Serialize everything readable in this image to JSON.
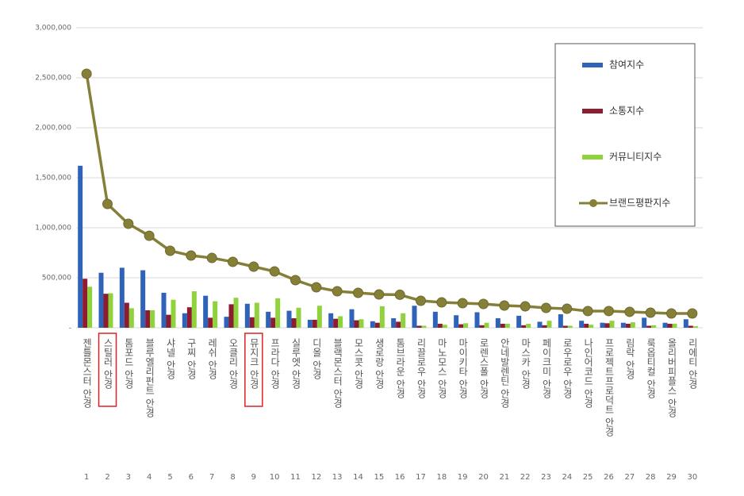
{
  "chart_data": {
    "type": "bar-line",
    "categories": [
      "젠틀몬스터 안경",
      "스틸러 안경",
      "톰포드 안경",
      "블루엘리펀트 안경",
      "샤넬 안경",
      "구찌 안경",
      "레쉬 안경",
      "오클리 안경",
      "뮤지크 안경",
      "프라다 안경",
      "실루엣 안경",
      "디올 안경",
      "블랙몬스터 안경",
      "모스콧 안경",
      "생로랑 안경",
      "톰브라운 안경",
      "리끌로우 안경",
      "마노모스 안경",
      "마이키타 안경",
      "로렌스폴 안경",
      "안네발렌틴 안경",
      "마스카 안경",
      "페이크미 안경",
      "로우로우 안경",
      "나인어코드 안경",
      "프로젝트프로덕트 안경",
      "림락 안경",
      "룩옵티컬 안경",
      "올리버피플스 안경",
      "리에티 안경"
    ],
    "ranks": [
      1,
      2,
      3,
      4,
      5,
      6,
      7,
      8,
      9,
      10,
      11,
      12,
      13,
      14,
      15,
      16,
      17,
      18,
      19,
      20,
      21,
      22,
      23,
      24,
      25,
      26,
      27,
      28,
      29,
      30
    ],
    "series": [
      {
        "name": "참여지수",
        "kind": "bar",
        "color": "#2f63b9",
        "values": [
          1620000,
          550000,
          600000,
          575000,
          350000,
          145000,
          320000,
          110000,
          240000,
          160000,
          170000,
          80000,
          145000,
          185000,
          65000,
          95000,
          220000,
          160000,
          125000,
          155000,
          95000,
          120000,
          60000,
          135000,
          70000,
          50000,
          50000,
          100000,
          50000,
          85000
        ]
      },
      {
        "name": "소통지수",
        "kind": "bar",
        "color": "#8e1c30",
        "values": [
          490000,
          340000,
          250000,
          175000,
          130000,
          205000,
          100000,
          235000,
          105000,
          100000,
          95000,
          80000,
          90000,
          75000,
          50000,
          60000,
          20000,
          40000,
          35000,
          25000,
          40000,
          25000,
          25000,
          20000,
          40000,
          45000,
          40000,
          20000,
          40000,
          20000
        ]
      },
      {
        "name": "커뮤니티지수",
        "kind": "bar",
        "color": "#8fd23c",
        "values": [
          410000,
          345000,
          195000,
          175000,
          280000,
          365000,
          265000,
          300000,
          250000,
          295000,
          200000,
          220000,
          115000,
          85000,
          215000,
          145000,
          20000,
          30000,
          45000,
          50000,
          40000,
          40000,
          70000,
          20000,
          30000,
          70000,
          55000,
          25000,
          40000,
          15000
        ]
      },
      {
        "name": "브랜드평판지수",
        "kind": "line",
        "color": "#857f38",
        "values": [
          2540000,
          1238000,
          1040000,
          920000,
          770000,
          722000,
          698000,
          659000,
          611000,
          563000,
          476000,
          405000,
          365000,
          349000,
          333000,
          330000,
          270000,
          254000,
          246000,
          238000,
          222000,
          214000,
          198000,
          190000,
          167000,
          167000,
          159000,
          151000,
          143000,
          143000
        ]
      }
    ],
    "ylim": [
      0,
      3000000
    ],
    "yticks": [
      {
        "value": 0,
        "label": "-"
      },
      {
        "value": 500000,
        "label": "500,000"
      },
      {
        "value": 1000000,
        "label": "1,000,000"
      },
      {
        "value": 1500000,
        "label": "1,500,000"
      },
      {
        "value": 2000000,
        "label": "2,000,000"
      },
      {
        "value": 2500000,
        "label": "2,500,000"
      },
      {
        "value": 3000000,
        "label": "3,000,000"
      }
    ],
    "grid": true,
    "legend": "upper right"
  }
}
